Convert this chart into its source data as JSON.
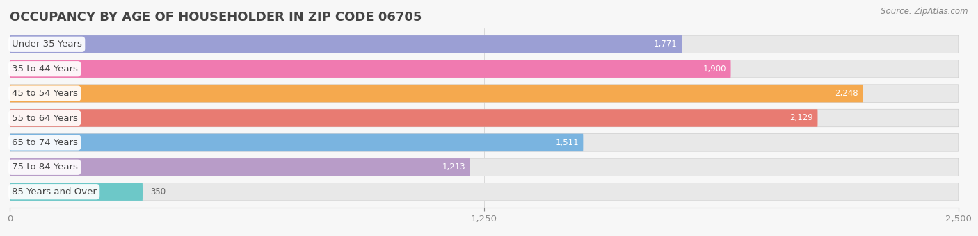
{
  "title": "OCCUPANCY BY AGE OF HOUSEHOLDER IN ZIP CODE 06705",
  "source": "Source: ZipAtlas.com",
  "categories": [
    "Under 35 Years",
    "35 to 44 Years",
    "45 to 54 Years",
    "55 to 64 Years",
    "65 to 74 Years",
    "75 to 84 Years",
    "85 Years and Over"
  ],
  "values": [
    1771,
    1900,
    2248,
    2129,
    1511,
    1213,
    350
  ],
  "bar_colors": [
    "#9b9fd4",
    "#f07ab0",
    "#f5a94e",
    "#e87b72",
    "#7ab4e0",
    "#b89cc8",
    "#6dc8c8"
  ],
  "bar_bg_color": "#e8e8e8",
  "bar_border_color": "#d0d0d0",
  "xlim": [
    0,
    2500
  ],
  "xticks": [
    0,
    1250,
    2500
  ],
  "title_fontsize": 13,
  "label_fontsize": 9.5,
  "value_fontsize": 8.5,
  "source_fontsize": 8.5,
  "background_color": "#f7f7f7"
}
